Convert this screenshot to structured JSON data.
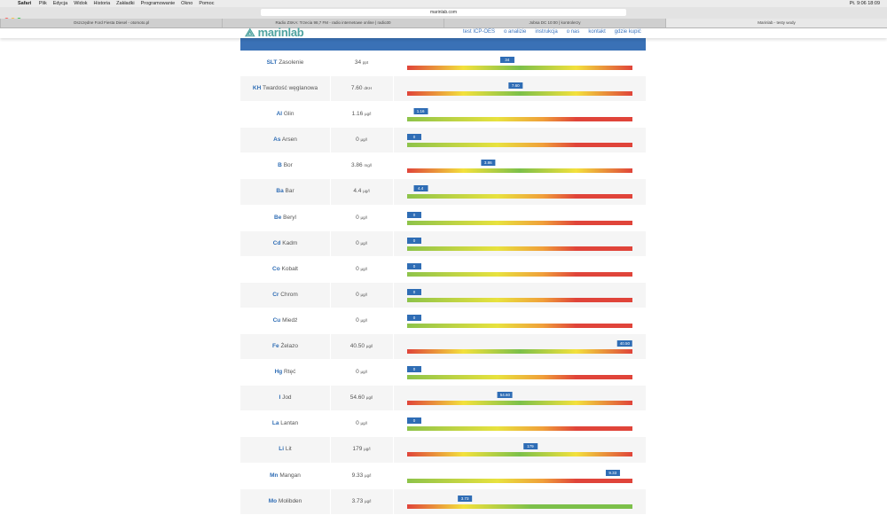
{
  "menubar": {
    "app": "Safari",
    "items": [
      "Plik",
      "Edycja",
      "Widok",
      "Historia",
      "Zakładki",
      "Programowanie",
      "Okno",
      "Pomoc"
    ],
    "clock": "Pt. 9:06  18:09"
  },
  "toolbar": {
    "url": "marinlab.com"
  },
  "tabs": [
    "Oszczędne Ford Fiesta Diesel - otomoto.pl",
    "Radio ZSKA: Trzecia 98,7 FM - radio internetowe online | radio30",
    "Jobsa DC 10:00 | kontrolerzy",
    "Marinlab - testy wody"
  ],
  "site": {
    "logo": "marinlab",
    "nav": [
      "test ICP-OES",
      "o analizie",
      "instrukcja",
      "o nas",
      "kontakt",
      "gdzie kupić"
    ]
  },
  "rows": [
    {
      "symbol": "SLT",
      "name": "Zasolenie",
      "value": "34",
      "unit": "ppt"
    },
    {
      "symbol": "KH",
      "name": "Twardość węglanowa",
      "value": "7.60",
      "unit": "dKH"
    },
    {
      "symbol": "Al",
      "name": "Glin",
      "value": "1.16",
      "unit": "µg/l"
    },
    {
      "symbol": "As",
      "name": "Arsen",
      "value": "0",
      "unit": "µg/l"
    },
    {
      "symbol": "B",
      "name": "Bor",
      "value": "3.86",
      "unit": "mg/l"
    },
    {
      "symbol": "Ba",
      "name": "Bar",
      "value": "4.4",
      "unit": "µg/l"
    },
    {
      "symbol": "Be",
      "name": "Beryl",
      "value": "0",
      "unit": "µg/l"
    },
    {
      "symbol": "Cd",
      "name": "Kadm",
      "value": "0",
      "unit": "µg/l"
    },
    {
      "symbol": "Co",
      "name": "Kobalt",
      "value": "0",
      "unit": "µg/l"
    },
    {
      "symbol": "Cr",
      "name": "Chrom",
      "value": "0",
      "unit": "µg/l"
    },
    {
      "symbol": "Cu",
      "name": "Miedź",
      "value": "0",
      "unit": "µg/l"
    },
    {
      "symbol": "Fe",
      "name": "Żelazo",
      "value": "40.50",
      "unit": "µg/l"
    },
    {
      "symbol": "Hg",
      "name": "Rtęć",
      "value": "0",
      "unit": "µg/l"
    },
    {
      "symbol": "I",
      "name": "Jod",
      "value": "54.60",
      "unit": "µg/l"
    },
    {
      "symbol": "La",
      "name": "Lantan",
      "value": "0",
      "unit": "µg/l"
    },
    {
      "symbol": "Li",
      "name": "Lit",
      "value": "179",
      "unit": "µg/l"
    },
    {
      "symbol": "Mn",
      "name": "Mangan",
      "value": "9.33",
      "unit": "µg/l"
    },
    {
      "symbol": "Mo",
      "name": "Molibden",
      "value": "3.73",
      "unit": "µg/l"
    }
  ]
}
